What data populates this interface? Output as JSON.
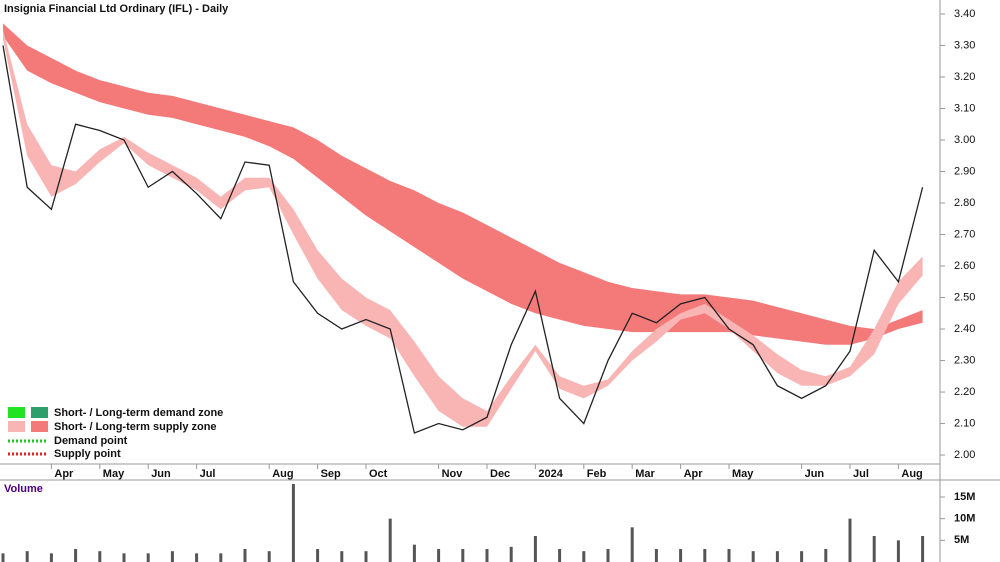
{
  "chart_data": [
    {
      "type": "line",
      "title": "Insignia Financial Ltd Ordinary (IFL) - Daily",
      "categories": [
        null,
        null,
        "Apr",
        null,
        "May",
        null,
        "Jun",
        null,
        "Jul",
        null,
        null,
        "Aug",
        null,
        "Sep",
        null,
        "Oct",
        null,
        null,
        "Nov",
        null,
        "Dec",
        null,
        "2024",
        null,
        "Feb",
        null,
        "Mar",
        null,
        "Apr",
        null,
        "May",
        null,
        null,
        "Jun",
        null,
        "Jul",
        null,
        "Aug",
        null
      ],
      "series": [
        {
          "color": "#222222",
          "values": [
            3.3,
            2.85,
            2.78,
            3.05,
            3.03,
            3.0,
            2.85,
            2.9,
            2.83,
            2.75,
            2.93,
            2.92,
            2.55,
            2.45,
            2.4,
            2.43,
            2.4,
            2.07,
            2.1,
            2.08,
            2.12,
            2.35,
            2.52,
            2.18,
            2.1,
            2.3,
            2.45,
            2.42,
            2.48,
            2.5,
            2.4,
            2.35,
            2.22,
            2.18,
            2.22,
            2.33,
            2.65,
            2.55,
            2.85
          ]
        }
      ],
      "bands": [
        {
          "color": "#f47a7a",
          "upper": [
            3.37,
            3.3,
            3.26,
            3.22,
            3.19,
            3.17,
            3.15,
            3.14,
            3.12,
            3.1,
            3.08,
            3.06,
            3.04,
            3.0,
            2.95,
            2.91,
            2.87,
            2.84,
            2.8,
            2.77,
            2.73,
            2.69,
            2.65,
            2.61,
            2.58,
            2.55,
            2.53,
            2.52,
            2.51,
            2.51,
            2.5,
            2.49,
            2.47,
            2.45,
            2.43,
            2.41,
            2.4,
            2.43,
            2.46
          ],
          "lower": [
            3.33,
            3.22,
            3.18,
            3.15,
            3.12,
            3.1,
            3.08,
            3.07,
            3.05,
            3.03,
            3.01,
            2.98,
            2.94,
            2.88,
            2.82,
            2.76,
            2.71,
            2.66,
            2.61,
            2.56,
            2.52,
            2.48,
            2.45,
            2.43,
            2.41,
            2.4,
            2.39,
            2.39,
            2.39,
            2.39,
            2.39,
            2.38,
            2.37,
            2.36,
            2.35,
            2.35,
            2.37,
            2.4,
            2.42
          ]
        },
        {
          "color": "#f9b4b4",
          "upper": [
            3.35,
            3.05,
            2.92,
            2.9,
            2.97,
            3.01,
            2.96,
            2.92,
            2.88,
            2.82,
            2.88,
            2.88,
            2.78,
            2.65,
            2.56,
            2.5,
            2.46,
            2.36,
            2.25,
            2.18,
            2.14,
            2.25,
            2.35,
            2.25,
            2.22,
            2.24,
            2.33,
            2.4,
            2.45,
            2.48,
            2.43,
            2.38,
            2.32,
            2.27,
            2.25,
            2.28,
            2.4,
            2.55,
            2.63
          ],
          "lower": [
            3.32,
            2.95,
            2.82,
            2.86,
            2.93,
            2.99,
            2.92,
            2.88,
            2.84,
            2.78,
            2.84,
            2.85,
            2.7,
            2.56,
            2.46,
            2.41,
            2.37,
            2.25,
            2.14,
            2.09,
            2.09,
            2.21,
            2.33,
            2.21,
            2.18,
            2.22,
            2.3,
            2.36,
            2.43,
            2.45,
            2.4,
            2.33,
            2.26,
            2.22,
            2.22,
            2.25,
            2.32,
            2.48,
            2.57
          ]
        }
      ],
      "ylim": [
        1.97,
        3.43
      ],
      "yticks": [
        {
          "value": 2.0,
          "label": "2.00"
        },
        {
          "value": 2.1,
          "label": "2.10"
        },
        {
          "value": 2.2,
          "label": "2.20"
        },
        {
          "value": 2.3,
          "label": "2.30"
        },
        {
          "value": 2.4,
          "label": "2.40"
        },
        {
          "value": 2.5,
          "label": "2.50"
        },
        {
          "value": 2.6,
          "label": "2.60"
        },
        {
          "value": 2.7,
          "label": "2.70"
        },
        {
          "value": 2.8,
          "label": "2.80"
        },
        {
          "value": 2.9,
          "label": "2.90"
        },
        {
          "value": 3.0,
          "label": "3.00"
        },
        {
          "value": 3.1,
          "label": "3.10"
        },
        {
          "value": 3.2,
          "label": "3.20"
        },
        {
          "value": 3.3,
          "label": "3.30"
        },
        {
          "value": 3.4,
          "label": "3.40"
        }
      ],
      "legend": [
        "Short- / Long-term demand zone",
        "Short- / Long-term supply zone",
        "Demand point",
        "Supply point"
      ]
    },
    {
      "type": "bar",
      "title": "Volume",
      "color": "#555555",
      "values": [
        2,
        2.5,
        2,
        3,
        2.5,
        2,
        2,
        2.5,
        2,
        2,
        3,
        2.5,
        18,
        3,
        2.5,
        2.5,
        10,
        4,
        3,
        3,
        3,
        3.5,
        6,
        3,
        2.5,
        3,
        8,
        3,
        3,
        3,
        3,
        2.5,
        2.5,
        2.5,
        3,
        10,
        6,
        5,
        6
      ],
      "ylim": [
        0,
        18
      ],
      "yticks": [
        {
          "value": 5,
          "label": "5M"
        },
        {
          "value": 10,
          "label": "10M"
        },
        {
          "value": 15,
          "label": "15M"
        }
      ]
    }
  ]
}
